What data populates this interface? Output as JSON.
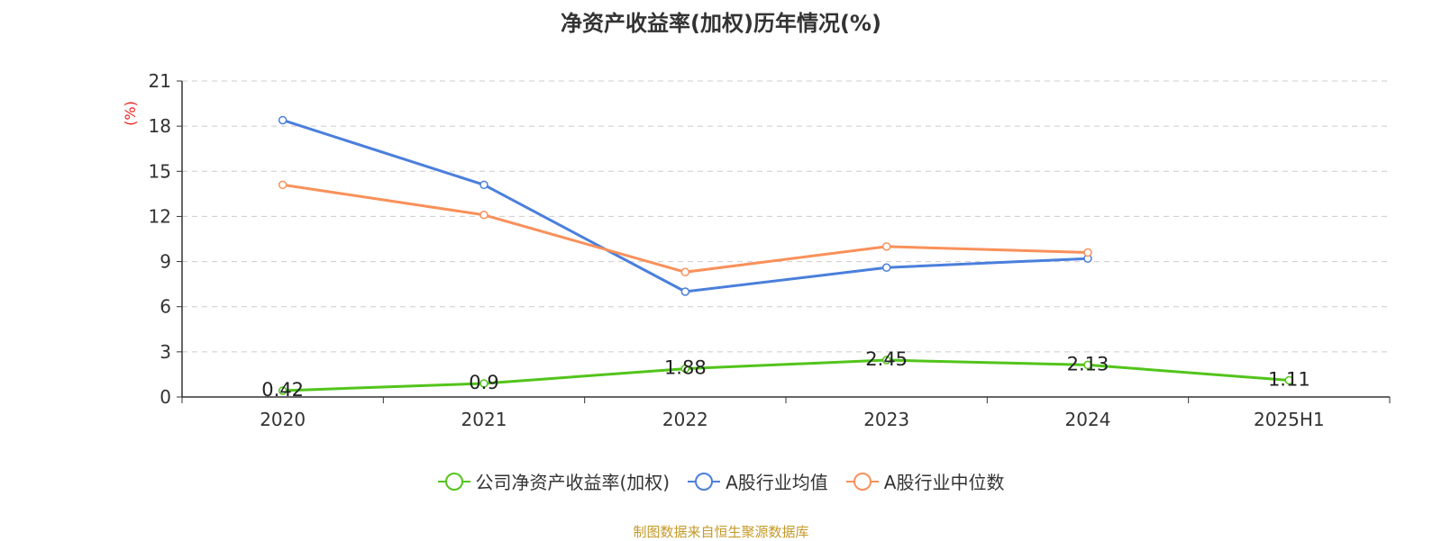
{
  "title": "净资产收益率(加权)历年情况(%)",
  "source_text": "制图数据来自恒生聚源数据库",
  "colors": {
    "company": "#52c41a",
    "average": "#4a7fdc",
    "median": "#f9905a",
    "unit_label": "#e8251f",
    "grid": "#cccccc",
    "axis": "#333333"
  },
  "chart_data": {
    "type": "line",
    "title": "净资产收益率(加权)历年情况(%)",
    "ylabel": "(%)",
    "xlabel": "",
    "ylim": [
      0,
      21
    ],
    "yticks": [
      0,
      3,
      6,
      9,
      12,
      15,
      18,
      21
    ],
    "categories": [
      "2020",
      "2021",
      "2022",
      "2023",
      "2024",
      "2025H1"
    ],
    "grid": true,
    "legend_position": "bottom-center",
    "series": [
      {
        "name": "公司净资产收益率(加权)",
        "values": [
          0.42,
          0.9,
          1.88,
          2.45,
          2.13,
          1.11
        ],
        "data_labels": [
          "0.42",
          "0.9",
          "1.88",
          "2.45",
          "2.13",
          "1.11"
        ]
      },
      {
        "name": "A股行业均值",
        "values": [
          18.4,
          14.1,
          7.0,
          8.6,
          9.2,
          null
        ]
      },
      {
        "name": "A股行业中位数",
        "values": [
          14.1,
          12.1,
          8.3,
          10.0,
          9.6,
          null
        ]
      }
    ]
  }
}
